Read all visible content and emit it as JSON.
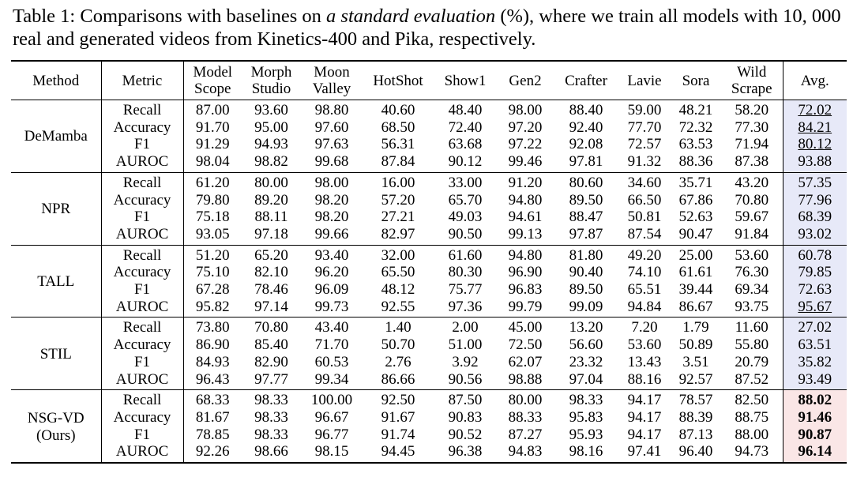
{
  "caption": {
    "label": "Table 1:",
    "text_before": "Comparisons with baselines on",
    "emphasis": "a standard evaluation",
    "text_after": "(%), where we train all models with 10, 000 real and generated videos from Kinetics-400 and Pika, respectively."
  },
  "table": {
    "header": [
      [
        "Method"
      ],
      [
        "Metric"
      ],
      [
        "Model",
        "Scope"
      ],
      [
        "Morph",
        "Studio"
      ],
      [
        "Moon",
        "Valley"
      ],
      [
        "HotShot"
      ],
      [
        "Show1"
      ],
      [
        "Gen2"
      ],
      [
        "Crafter"
      ],
      [
        "Lavie"
      ],
      [
        "Sora"
      ],
      [
        "Wild",
        "Scrape"
      ],
      [
        "Avg."
      ]
    ],
    "groups": [
      {
        "method": [
          "DeMamba"
        ],
        "avg_background": "#e7e9f8",
        "rows": [
          {
            "metric": "Recall",
            "values": [
              "87.00",
              "93.60",
              "98.80",
              "40.60",
              "48.40",
              "98.00",
              "88.40",
              "59.00",
              "48.21",
              "58.20"
            ],
            "avg": "72.02",
            "avg_style": "underline"
          },
          {
            "metric": "Accuracy",
            "values": [
              "91.70",
              "95.00",
              "97.60",
              "68.50",
              "72.40",
              "97.20",
              "92.40",
              "77.70",
              "72.32",
              "77.30"
            ],
            "avg": "84.21",
            "avg_style": "underline"
          },
          {
            "metric": "F1",
            "values": [
              "91.29",
              "94.93",
              "97.63",
              "56.31",
              "63.68",
              "97.22",
              "92.08",
              "72.57",
              "63.53",
              "71.94"
            ],
            "avg": "80.12",
            "avg_style": "underline"
          },
          {
            "metric": "AUROC",
            "values": [
              "98.04",
              "98.82",
              "99.68",
              "87.84",
              "90.12",
              "99.46",
              "97.81",
              "91.32",
              "88.36",
              "87.38"
            ],
            "avg": "93.88"
          }
        ]
      },
      {
        "method": [
          "NPR"
        ],
        "avg_background": "#e7e9f8",
        "rows": [
          {
            "metric": "Recall",
            "values": [
              "61.20",
              "80.00",
              "98.00",
              "16.00",
              "33.00",
              "91.20",
              "80.60",
              "34.60",
              "35.71",
              "43.20"
            ],
            "avg": "57.35"
          },
          {
            "metric": "Accuracy",
            "values": [
              "79.80",
              "89.20",
              "98.20",
              "57.20",
              "65.70",
              "94.80",
              "89.50",
              "66.50",
              "67.86",
              "70.80"
            ],
            "avg": "77.96"
          },
          {
            "metric": "F1",
            "values": [
              "75.18",
              "88.11",
              "98.20",
              "27.21",
              "49.03",
              "94.61",
              "88.47",
              "50.81",
              "52.63",
              "59.67"
            ],
            "avg": "68.39"
          },
          {
            "metric": "AUROC",
            "values": [
              "93.05",
              "97.18",
              "99.66",
              "82.97",
              "90.50",
              "99.13",
              "97.87",
              "87.54",
              "90.47",
              "91.84"
            ],
            "avg": "93.02"
          }
        ]
      },
      {
        "method": [
          "TALL"
        ],
        "avg_background": "#e7e9f8",
        "rows": [
          {
            "metric": "Recall",
            "values": [
              "51.20",
              "65.20",
              "93.40",
              "32.00",
              "61.60",
              "94.80",
              "81.80",
              "49.20",
              "25.00",
              "53.60"
            ],
            "avg": "60.78"
          },
          {
            "metric": "Accuracy",
            "values": [
              "75.10",
              "82.10",
              "96.20",
              "65.50",
              "80.30",
              "96.90",
              "90.40",
              "74.10",
              "61.61",
              "76.30"
            ],
            "avg": "79.85"
          },
          {
            "metric": "F1",
            "values": [
              "67.28",
              "78.46",
              "96.09",
              "48.12",
              "75.77",
              "96.83",
              "89.50",
              "65.51",
              "39.44",
              "69.34"
            ],
            "avg": "72.63"
          },
          {
            "metric": "AUROC",
            "values": [
              "95.82",
              "97.14",
              "99.73",
              "92.55",
              "97.36",
              "99.79",
              "99.09",
              "94.84",
              "86.67",
              "93.75"
            ],
            "avg": "95.67",
            "avg_style": "underline"
          }
        ]
      },
      {
        "method": [
          "STIL"
        ],
        "avg_background": "#e7e9f8",
        "rows": [
          {
            "metric": "Recall",
            "values": [
              "73.80",
              "70.80",
              "43.40",
              "1.40",
              "2.00",
              "45.00",
              "13.20",
              "7.20",
              "1.79",
              "11.60"
            ],
            "avg": "27.02"
          },
          {
            "metric": "Accuracy",
            "values": [
              "86.90",
              "85.40",
              "71.70",
              "50.70",
              "51.00",
              "72.50",
              "56.60",
              "53.60",
              "50.89",
              "55.80"
            ],
            "avg": "63.51"
          },
          {
            "metric": "F1",
            "values": [
              "84.93",
              "82.90",
              "60.53",
              "2.76",
              "3.92",
              "62.07",
              "23.32",
              "13.43",
              "3.51",
              "20.79"
            ],
            "avg": "35.82"
          },
          {
            "metric": "AUROC",
            "values": [
              "96.43",
              "97.77",
              "99.34",
              "86.66",
              "90.56",
              "98.88",
              "97.04",
              "88.16",
              "92.57",
              "87.52"
            ],
            "avg": "93.49"
          }
        ]
      },
      {
        "method": [
          "NSG-VD",
          "(Ours)"
        ],
        "avg_background": "#fae6e6",
        "rows": [
          {
            "metric": "Recall",
            "values": [
              "68.33",
              "98.33",
              "100.00",
              "92.50",
              "87.50",
              "80.00",
              "98.33",
              "94.17",
              "78.57",
              "82.50"
            ],
            "avg": "88.02",
            "avg_style": "bold"
          },
          {
            "metric": "Accuracy",
            "values": [
              "81.67",
              "98.33",
              "96.67",
              "91.67",
              "90.83",
              "88.33",
              "95.83",
              "94.17",
              "88.39",
              "88.75"
            ],
            "avg": "91.46",
            "avg_style": "bold"
          },
          {
            "metric": "F1",
            "values": [
              "78.85",
              "98.33",
              "96.77",
              "91.74",
              "90.52",
              "87.27",
              "95.93",
              "94.17",
              "87.13",
              "88.00"
            ],
            "avg": "90.87",
            "avg_style": "bold"
          },
          {
            "metric": "AUROC",
            "values": [
              "92.26",
              "98.66",
              "98.15",
              "94.45",
              "96.38",
              "94.83",
              "98.16",
              "97.41",
              "96.40",
              "94.73"
            ],
            "avg": "96.14",
            "avg_style": "bold"
          }
        ]
      }
    ]
  }
}
